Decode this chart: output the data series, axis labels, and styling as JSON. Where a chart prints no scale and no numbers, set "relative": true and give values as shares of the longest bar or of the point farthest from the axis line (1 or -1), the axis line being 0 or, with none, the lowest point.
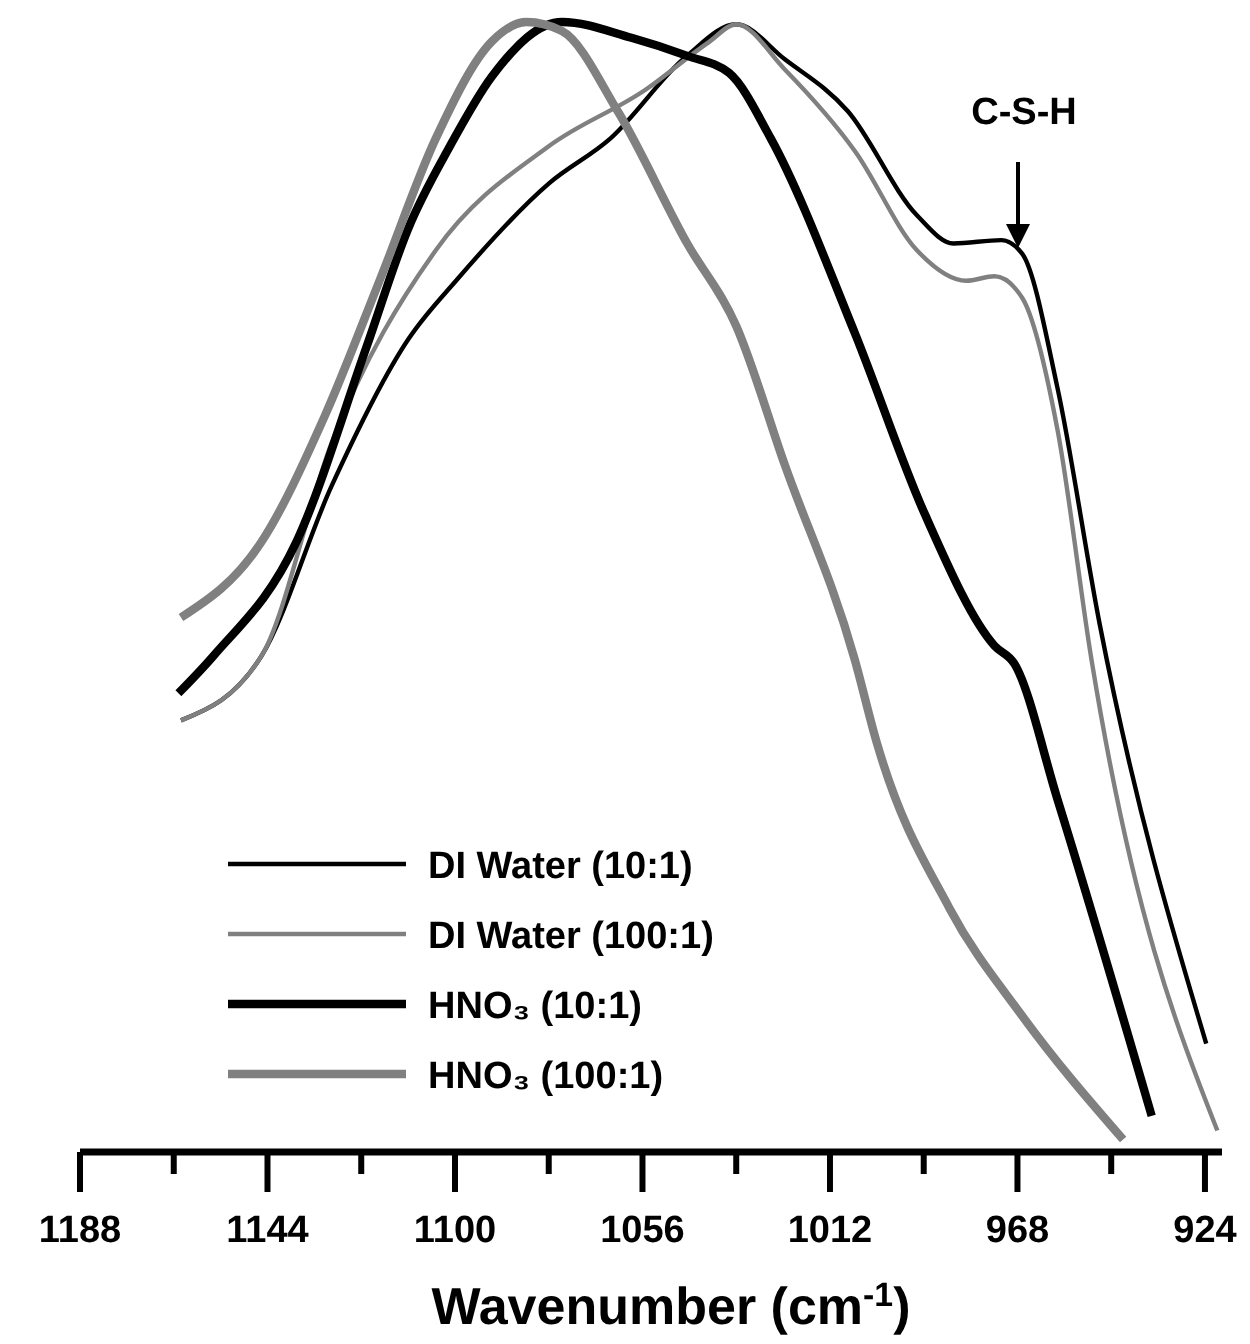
{
  "chart_data": {
    "type": "line",
    "relative": true,
    "xlabel": "Wavenumber (cm$^{-1}$)",
    "xlim": [
      1188,
      920
    ],
    "xticks": [
      1188,
      {
        "value": 1166,
        "label": null
      },
      1144,
      {
        "value": 1122,
        "label": null
      },
      1100,
      {
        "value": 1078,
        "label": null
      },
      1056,
      {
        "value": 1034,
        "label": null
      },
      1012,
      {
        "value": 990,
        "label": null
      },
      968,
      {
        "value": 946,
        "label": null
      },
      924
    ],
    "legend": "bottom left",
    "line_style": "solid",
    "annotations": [
      "C-S-H"
    ],
    "series": [
      {
        "name": "DI Water (10:1)",
        "color": "#000000",
        "x": [
          1164.3,
          1145.4,
          1129,
          1111,
          1099.3,
          1078,
          1063.5,
          1045.6,
          1034,
          1022.6,
          1007.8,
          991.6,
          983,
          971.8,
          966.9,
          958.6,
          948.7,
          923.7
        ],
        "values": [
          0.382,
          0.439,
          0.589,
          0.719,
          0.773,
          0.857,
          0.897,
          0.97,
          0.998,
          0.967,
          0.921,
          0.829,
          0.804,
          0.807,
          0.795,
          0.676,
          0.467,
          0.096
        ]
      },
      {
        "name": "DI Water (100:1)",
        "color": "#808080",
        "x": [
          1164.3,
          1145.4,
          1129,
          1104.5,
          1078,
          1055.3,
          1040.5,
          1034,
          1022.6,
          1006,
          991.6,
          980,
          973.4,
          966.9,
          958.6,
          950.6,
          921.1
        ],
        "values": [
          0.382,
          0.439,
          0.627,
          0.798,
          0.89,
          0.94,
          0.982,
          0.998,
          0.958,
          0.885,
          0.798,
          0.771,
          0.775,
          0.756,
          0.639,
          0.435,
          0.019
        ]
      },
      {
        "name": "HNO₃ (10:1)",
        "color": "#000000",
        "x": [
          1164.9,
          1156.7,
          1137.2,
          1120.8,
          1111,
          1101.2,
          1091.3,
          1074.9,
          1058.6,
          1045.5,
          1035.7,
          1025.9,
          1006.2,
          989.8,
          973.4,
          968.7,
          958.6,
          936.5
        ],
        "values": [
          0.406,
          0.439,
          0.54,
          0.712,
          0.817,
          0.89,
          0.952,
          1,
          0.986,
          0.97,
          0.955,
          0.897,
          0.725,
          0.565,
          0.448,
          0.432,
          0.312,
          0.032
        ]
      },
      {
        "name": "HNO₃ (100:1)",
        "color": "#808080",
        "x": [
          1164.3,
          1145.4,
          1130.6,
          1117.5,
          1104.5,
          1091.3,
          1083.2,
          1074.9,
          1061.8,
          1045.5,
          1034,
          1022.6,
          1006.2,
          1001,
          984,
          967,
          943.2
        ],
        "values": [
          0.473,
          0.54,
          0.651,
          0.773,
          0.897,
          0.983,
          1,
          0.992,
          0.921,
          0.804,
          0.731,
          0.608,
          0.436,
          0.362,
          0.216,
          0.121,
          0.011
        ]
      }
    ]
  }
}
